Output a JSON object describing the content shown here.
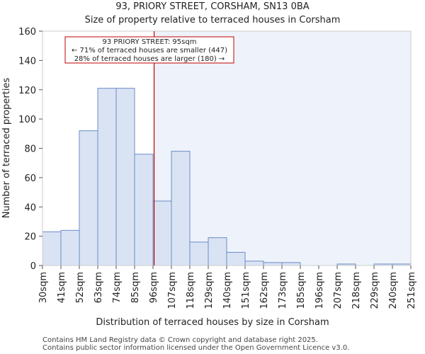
{
  "chart_data": {
    "type": "bar",
    "title_line1": "93, PRIORY STREET, CORSHAM, SN13 0BA",
    "title_line2": "Size of property relative to terraced houses in Corsham",
    "xlabel": "Distribution of terraced houses by size in Corsham",
    "ylabel": "Number of terraced properties",
    "ylim": [
      0,
      160
    ],
    "yticks": [
      0,
      20,
      40,
      60,
      80,
      100,
      120,
      140,
      160
    ],
    "xtick_labels": [
      "30sqm",
      "41sqm",
      "52sqm",
      "63sqm",
      "74sqm",
      "85sqm",
      "96sqm",
      "107sqm",
      "118sqm",
      "129sqm",
      "140sqm",
      "151sqm",
      "162sqm",
      "173sqm",
      "185sqm",
      "196sqm",
      "207sqm",
      "218sqm",
      "229sqm",
      "240sqm",
      "251sqm"
    ],
    "values": [
      23,
      24,
      92,
      121,
      121,
      76,
      44,
      78,
      16,
      19,
      9,
      3,
      2,
      2,
      0,
      0,
      1,
      0,
      1,
      1
    ],
    "marker_value": 95,
    "marker_position_bins": 6.06,
    "annotation": {
      "line1": "93 PRIORY STREET: 95sqm",
      "line2": "← 71% of terraced houses are smaller (447)",
      "line3": "28% of terraced houses are larger (180) →"
    },
    "colors": {
      "bar_fill": "#dae3f3",
      "bar_edge": "#6b8cc7",
      "marker": "#c00000",
      "highlight_bg": "#eef2fa"
    }
  },
  "footer": {
    "line1": "Contains HM Land Registry data © Crown copyright and database right 2025.",
    "line2": "Contains public sector information licensed under the Open Government Licence v3.0."
  }
}
